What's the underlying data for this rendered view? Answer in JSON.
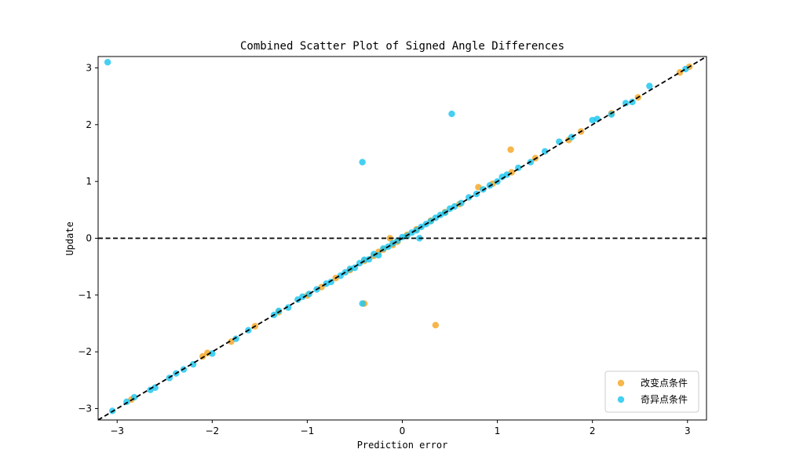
{
  "chart_data": {
    "type": "scatter",
    "title": "Combined Scatter Plot of Signed Angle Differences",
    "xlabel": "Prediction error",
    "ylabel": "Update",
    "xlim": [
      -3.2,
      3.2
    ],
    "ylim": [
      -3.2,
      3.2
    ],
    "xticks": [
      -3,
      -2,
      -1,
      0,
      1,
      2,
      3
    ],
    "yticks": [
      -3,
      -2,
      -1,
      0,
      1,
      2,
      3
    ],
    "grid": false,
    "legend_position": "lower-right",
    "reference_lines": [
      {
        "kind": "identity",
        "style": "dashed",
        "color": "#000000"
      },
      {
        "kind": "horizontal",
        "y": 0,
        "style": "dashed",
        "color": "#000000"
      }
    ],
    "series": [
      {
        "name": "改变点条件",
        "color": "#f5a623",
        "points": [
          [
            -2.85,
            -2.84
          ],
          [
            -2.1,
            -2.08
          ],
          [
            -2.05,
            -2.02
          ],
          [
            -1.8,
            -1.82
          ],
          [
            -1.55,
            -1.55
          ],
          [
            -1.3,
            -1.3
          ],
          [
            -1.0,
            -1.01
          ],
          [
            -0.85,
            -0.86
          ],
          [
            -0.7,
            -0.7
          ],
          [
            -0.55,
            -0.56
          ],
          [
            -0.4,
            -0.4
          ],
          [
            -0.3,
            -0.31
          ],
          [
            -0.25,
            -0.24
          ],
          [
            -0.2,
            -0.2
          ],
          [
            -0.1,
            -0.12
          ],
          [
            -0.05,
            -0.06
          ],
          [
            -0.13,
            0.0
          ],
          [
            0.05,
            0.06
          ],
          [
            0.15,
            0.16
          ],
          [
            0.3,
            0.31
          ],
          [
            0.45,
            0.46
          ],
          [
            0.6,
            0.6
          ],
          [
            0.8,
            0.9
          ],
          [
            0.95,
            0.96
          ],
          [
            1.15,
            1.16
          ],
          [
            1.4,
            1.41
          ],
          [
            1.75,
            1.73
          ],
          [
            1.88,
            1.88
          ],
          [
            2.2,
            2.2
          ],
          [
            2.48,
            2.48
          ],
          [
            2.92,
            2.92
          ],
          [
            3.02,
            3.02
          ],
          [
            1.14,
            1.56
          ],
          [
            -0.4,
            -1.15
          ],
          [
            0.35,
            -1.53
          ]
        ]
      },
      {
        "name": "奇异点条件",
        "color": "#1cc6ef",
        "points": [
          [
            -3.1,
            3.1
          ],
          [
            -3.05,
            -3.04
          ],
          [
            -2.9,
            -2.88
          ],
          [
            -2.82,
            -2.8
          ],
          [
            -2.65,
            -2.67
          ],
          [
            -2.6,
            -2.63
          ],
          [
            -2.45,
            -2.46
          ],
          [
            -2.38,
            -2.38
          ],
          [
            -2.3,
            -2.31
          ],
          [
            -2.2,
            -2.22
          ],
          [
            -2.0,
            -2.03
          ],
          [
            -1.75,
            -1.77
          ],
          [
            -1.62,
            -1.62
          ],
          [
            -1.35,
            -1.35
          ],
          [
            -1.3,
            -1.28
          ],
          [
            -1.2,
            -1.22
          ],
          [
            -1.1,
            -1.08
          ],
          [
            -1.05,
            -1.03
          ],
          [
            -0.98,
            -0.98
          ],
          [
            -0.9,
            -0.9
          ],
          [
            -0.8,
            -0.8
          ],
          [
            -0.75,
            -0.77
          ],
          [
            -0.65,
            -0.66
          ],
          [
            -0.6,
            -0.6
          ],
          [
            -0.55,
            -0.54
          ],
          [
            -0.5,
            -0.52
          ],
          [
            -0.45,
            -0.44
          ],
          [
            -0.4,
            -0.38
          ],
          [
            -0.35,
            -0.37
          ],
          [
            -0.3,
            -0.28
          ],
          [
            -0.25,
            -0.3
          ],
          [
            -0.2,
            -0.18
          ],
          [
            -0.15,
            -0.15
          ],
          [
            -0.1,
            -0.09
          ],
          [
            -0.05,
            -0.04
          ],
          [
            0.0,
            0.02
          ],
          [
            0.05,
            0.04
          ],
          [
            0.1,
            0.1
          ],
          [
            0.15,
            0.14
          ],
          [
            0.2,
            0.2
          ],
          [
            0.25,
            0.25
          ],
          [
            0.3,
            0.3
          ],
          [
            0.35,
            0.36
          ],
          [
            0.4,
            0.41
          ],
          [
            0.45,
            0.45
          ],
          [
            0.5,
            0.52
          ],
          [
            0.55,
            0.56
          ],
          [
            0.62,
            0.62
          ],
          [
            0.7,
            0.72
          ],
          [
            0.78,
            0.78
          ],
          [
            0.85,
            0.86
          ],
          [
            0.92,
            0.93
          ],
          [
            1.0,
            1.0
          ],
          [
            1.05,
            1.08
          ],
          [
            1.1,
            1.12
          ],
          [
            1.22,
            1.24
          ],
          [
            1.35,
            1.34
          ],
          [
            1.5,
            1.53
          ],
          [
            1.65,
            1.7
          ],
          [
            1.78,
            1.78
          ],
          [
            2.0,
            2.08
          ],
          [
            2.05,
            2.1
          ],
          [
            2.2,
            2.18
          ],
          [
            2.35,
            2.38
          ],
          [
            2.42,
            2.4
          ],
          [
            2.6,
            2.68
          ],
          [
            2.98,
            2.98
          ],
          [
            0.52,
            2.19
          ],
          [
            -0.42,
            1.34
          ],
          [
            -0.42,
            -1.15
          ],
          [
            0.18,
            0.0
          ]
        ]
      }
    ]
  }
}
